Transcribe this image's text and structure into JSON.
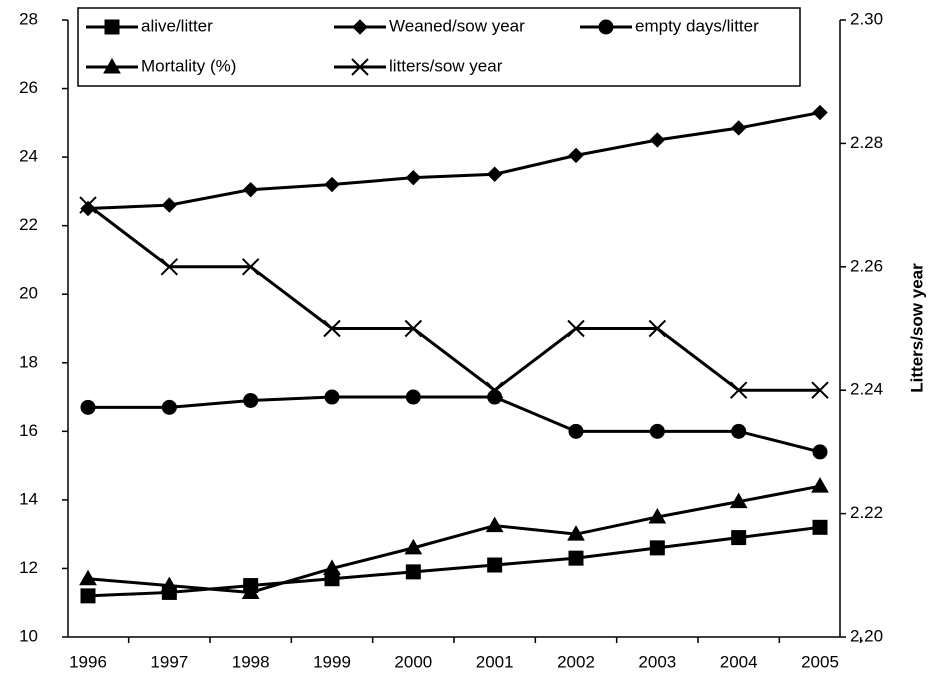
{
  "chart_data": {
    "type": "line",
    "categories": [
      "1996",
      "1997",
      "1998",
      "1999",
      "2000",
      "2001",
      "2002",
      "2003",
      "2004",
      "2005"
    ],
    "ylim": [
      10,
      28
    ],
    "yticks": [
      10,
      12,
      14,
      16,
      18,
      20,
      22,
      24,
      26,
      28
    ],
    "y2lim": [
      2.2,
      2.3
    ],
    "y2ticks": [
      {
        "value": 2.2,
        "label": "2.20"
      },
      {
        "value": 2.22,
        "label": "2.22"
      },
      {
        "value": 2.24,
        "label": "2.24"
      },
      {
        "value": 2.26,
        "label": "2.26"
      },
      {
        "value": 2.28,
        "label": "2.28"
      },
      {
        "value": 2.3,
        "label": "2.30"
      }
    ],
    "y2label": "Litters/sow year",
    "legend": "top",
    "series": [
      {
        "name": "alive/litter",
        "color": "#000000",
        "marker": "square",
        "values": [
          11.2,
          11.3,
          11.5,
          11.7,
          11.9,
          12.1,
          12.3,
          12.6,
          12.9,
          13.2
        ]
      },
      {
        "name": "Weaned/sow year",
        "color": "#000000",
        "marker": "diamond",
        "values": [
          22.5,
          22.6,
          23.05,
          23.2,
          23.4,
          23.5,
          24.05,
          24.5,
          24.85,
          25.3
        ]
      },
      {
        "name": "empty days/litter",
        "color": "#000000",
        "marker": "circle",
        "values": [
          16.7,
          16.7,
          16.9,
          17.0,
          17.0,
          17.0,
          16.0,
          16.0,
          16.0,
          15.4
        ]
      },
      {
        "name": "Mortality (%)",
        "color": "#000000",
        "marker": "triangle",
        "values": [
          11.7,
          11.5,
          11.3,
          12.0,
          12.6,
          13.25,
          13.0,
          13.5,
          13.95,
          14.4
        ]
      },
      {
        "name": "litters/sow year",
        "color": "#000000",
        "marker": "x",
        "axis": "y2",
        "values": [
          2.27,
          2.26,
          2.26,
          2.25,
          2.25,
          2.24,
          2.25,
          2.25,
          2.24,
          2.24
        ]
      }
    ]
  }
}
